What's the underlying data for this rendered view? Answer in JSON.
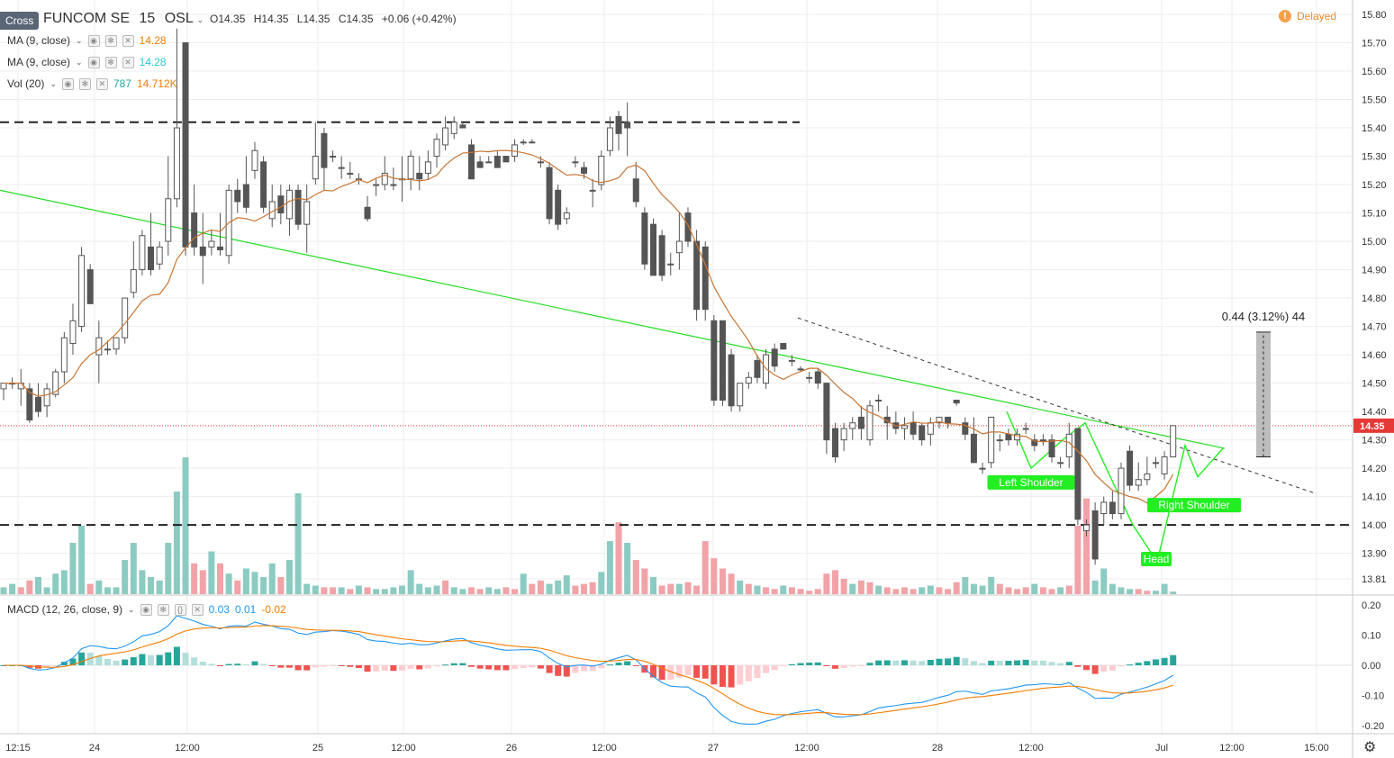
{
  "header": {
    "cross_label": "Cross",
    "symbol": "FUNCOM SE",
    "interval": "15",
    "exchange": "OSL",
    "ohlc": {
      "o": "14.35",
      "h": "14.35",
      "l": "14.35",
      "c": "14.35"
    },
    "change": "+0.06 (+0.42%)",
    "o_label": "O",
    "h_label": "H",
    "l_label": "L",
    "c_label": "C",
    "delayed": "Delayed"
  },
  "legends": {
    "ma1": {
      "label": "MA (9, close)",
      "value": "14.28",
      "color": "#f57c00"
    },
    "ma2": {
      "label": "MA (9, close)",
      "value": "14.28",
      "color": "#26c6da"
    },
    "vol": {
      "label": "Vol (20)",
      "value1": "787",
      "value2": "14.712K",
      "color1": "#26a69a",
      "color2": "#f57c00"
    },
    "macd": {
      "label": "MACD (12, 26, close, 9)",
      "v1": "0.03",
      "v2": "0.01",
      "v3": "-0.02",
      "c1": "#2196f3",
      "c2": "#2196f3",
      "c3": "#f57c00"
    }
  },
  "colors": {
    "up_candle": "#ffffff",
    "down_candle": "#555555",
    "vol_up": "#8ccbc2",
    "vol_down": "#f1a3a8",
    "trend": "#22dd22",
    "pattern": "#22ee22",
    "ma": "#c87533",
    "last_price": "#e53935",
    "macd_line": "#2196f3",
    "signal_line": "#f57c00",
    "hist_up_strong": "#26a69a",
    "hist_up_weak": "#b2dfdb",
    "hist_down_strong": "#ef5350",
    "hist_down_weak": "#ffcdd2"
  },
  "chart_data": {
    "type": "candlestick",
    "price_axis": {
      "min": 13.81,
      "max": 15.8,
      "ticks": [
        "15.80",
        "15.70",
        "15.60",
        "15.50",
        "15.40",
        "15.30",
        "15.20",
        "15.10",
        "15.00",
        "14.90",
        "14.80",
        "14.70",
        "14.60",
        "14.50",
        "14.40",
        "14.30",
        "14.20",
        "14.10",
        "14.00",
        "13.90",
        "13.81"
      ]
    },
    "last_price": "14.35",
    "time_labels": [
      "12:15",
      "24",
      "12:00",
      "25",
      "12:00",
      "26",
      "12:00",
      "27",
      "12:00",
      "28",
      "12:00",
      "Jul",
      "12:00",
      "15:00"
    ],
    "horizontal_levels": [
      15.42,
      14.0
    ],
    "measure_label": "0.44 (3.12%) 44",
    "pattern_labels": [
      "Left Shoulder",
      "Head",
      "Right Shoulder"
    ],
    "candles": [
      [
        14.48,
        14.5,
        14.44,
        14.5
      ],
      [
        14.5,
        14.52,
        14.48,
        14.5
      ],
      [
        14.48,
        14.55,
        14.42,
        14.5
      ],
      [
        14.48,
        14.5,
        14.36,
        14.37
      ],
      [
        14.45,
        14.5,
        14.38,
        14.4
      ],
      [
        14.42,
        14.5,
        14.38,
        14.48
      ],
      [
        14.46,
        14.55,
        14.45,
        14.54
      ],
      [
        14.54,
        14.68,
        14.5,
        14.66
      ],
      [
        14.64,
        14.78,
        14.6,
        14.72
      ],
      [
        14.7,
        14.98,
        14.68,
        14.95
      ],
      [
        14.9,
        14.92,
        14.78,
        14.78
      ],
      [
        14.6,
        14.72,
        14.5,
        14.66
      ],
      [
        14.62,
        14.65,
        14.6,
        14.62
      ],
      [
        14.62,
        14.66,
        14.6,
        14.66
      ],
      [
        14.66,
        14.8,
        14.64,
        14.8
      ],
      [
        14.82,
        15.0,
        14.8,
        14.9
      ],
      [
        14.9,
        15.04,
        14.88,
        15.02
      ],
      [
        14.98,
        15.1,
        14.88,
        14.9
      ],
      [
        14.92,
        15.0,
        14.9,
        14.98
      ],
      [
        15.0,
        15.3,
        14.95,
        15.15
      ],
      [
        15.15,
        15.75,
        15.12,
        15.4
      ],
      [
        15.7,
        15.7,
        14.95,
        14.98
      ],
      [
        15.1,
        15.2,
        14.95,
        14.98
      ],
      [
        14.98,
        15.1,
        14.85,
        14.95
      ],
      [
        14.98,
        15.04,
        14.95,
        15.0
      ],
      [
        14.98,
        15.1,
        14.95,
        14.97
      ],
      [
        14.95,
        15.2,
        14.92,
        15.18
      ],
      [
        15.18,
        15.22,
        15.1,
        15.14
      ],
      [
        15.2,
        15.3,
        15.1,
        15.12
      ],
      [
        15.25,
        15.35,
        15.22,
        15.32
      ],
      [
        15.28,
        15.3,
        15.1,
        15.12
      ],
      [
        15.08,
        15.2,
        15.05,
        15.14
      ],
      [
        15.16,
        15.2,
        15.06,
        15.1
      ],
      [
        15.08,
        15.2,
        15.02,
        15.18
      ],
      [
        15.18,
        15.2,
        15.04,
        15.06
      ],
      [
        15.06,
        15.2,
        14.96,
        15.14
      ],
      [
        15.22,
        15.42,
        15.2,
        15.3
      ],
      [
        15.38,
        15.4,
        15.18,
        15.26
      ],
      [
        15.3,
        15.32,
        15.28,
        15.3
      ],
      [
        15.26,
        15.3,
        15.22,
        15.26
      ],
      [
        15.24,
        15.28,
        15.22,
        15.24
      ],
      [
        15.22,
        15.24,
        15.2,
        15.22
      ],
      [
        15.12,
        15.16,
        15.07,
        15.08
      ],
      [
        15.2,
        15.22,
        15.16,
        15.2
      ],
      [
        15.2,
        15.3,
        15.18,
        15.24
      ],
      [
        15.2,
        15.26,
        15.18,
        15.2
      ],
      [
        15.22,
        15.3,
        15.14,
        15.22
      ],
      [
        15.22,
        15.32,
        15.18,
        15.3
      ],
      [
        15.24,
        15.3,
        15.18,
        15.22
      ],
      [
        15.24,
        15.32,
        15.22,
        15.28
      ],
      [
        15.3,
        15.38,
        15.26,
        15.36
      ],
      [
        15.34,
        15.44,
        15.32,
        15.4
      ],
      [
        15.38,
        15.44,
        15.36,
        15.42
      ],
      [
        15.41,
        15.42,
        15.4,
        15.4
      ],
      [
        15.34,
        15.36,
        15.22,
        15.22
      ],
      [
        15.28,
        15.3,
        15.26,
        15.26
      ],
      [
        15.28,
        15.3,
        15.28,
        15.28
      ],
      [
        15.3,
        15.32,
        15.26,
        15.26
      ],
      [
        15.3,
        15.3,
        15.28,
        15.28
      ],
      [
        15.3,
        15.36,
        15.28,
        15.34
      ],
      [
        15.35,
        15.36,
        15.34,
        15.35
      ],
      [
        15.35,
        15.36,
        15.35,
        15.35
      ],
      [
        15.28,
        15.3,
        15.26,
        15.28
      ],
      [
        15.26,
        15.28,
        15.06,
        15.08
      ],
      [
        15.18,
        15.2,
        15.04,
        15.06
      ],
      [
        15.08,
        15.12,
        15.06,
        15.1
      ],
      [
        15.28,
        15.3,
        15.26,
        15.28
      ],
      [
        15.26,
        15.28,
        15.22,
        15.24
      ],
      [
        15.18,
        15.22,
        15.12,
        15.18
      ],
      [
        15.2,
        15.32,
        15.18,
        15.3
      ],
      [
        15.32,
        15.44,
        15.3,
        15.4
      ],
      [
        15.44,
        15.46,
        15.32,
        15.38
      ],
      [
        15.42,
        15.49,
        15.3,
        15.4
      ],
      [
        15.22,
        15.28,
        15.12,
        15.14
      ],
      [
        15.1,
        15.12,
        14.9,
        14.92
      ],
      [
        15.06,
        15.08,
        14.88,
        14.88
      ],
      [
        15.02,
        15.04,
        14.86,
        14.88
      ],
      [
        14.92,
        14.96,
        14.88,
        14.92
      ],
      [
        14.96,
        15.1,
        14.9,
        15.0
      ],
      [
        15.1,
        15.12,
        14.98,
        15.0
      ],
      [
        15.0,
        15.04,
        14.72,
        14.76
      ],
      [
        14.98,
        15.0,
        14.72,
        14.76
      ],
      [
        14.72,
        14.74,
        14.42,
        14.44
      ],
      [
        14.72,
        14.72,
        14.42,
        14.44
      ],
      [
        14.6,
        14.62,
        14.4,
        14.42
      ],
      [
        14.42,
        14.5,
        14.4,
        14.5
      ],
      [
        14.5,
        14.54,
        14.48,
        14.52
      ],
      [
        14.58,
        14.6,
        14.5,
        14.52
      ],
      [
        14.5,
        14.62,
        14.48,
        14.6
      ],
      [
        14.62,
        14.64,
        14.54,
        14.56
      ],
      [
        14.64,
        14.64,
        14.62,
        14.62
      ],
      [
        14.58,
        14.6,
        14.56,
        14.58
      ],
      [
        14.55,
        14.56,
        14.54,
        14.55
      ],
      [
        14.52,
        14.54,
        14.5,
        14.52
      ],
      [
        14.54,
        14.55,
        14.48,
        14.5
      ],
      [
        14.5,
        14.5,
        14.25,
        14.3
      ],
      [
        14.34,
        14.36,
        14.22,
        14.24
      ],
      [
        14.3,
        14.36,
        14.26,
        14.34
      ],
      [
        14.34,
        14.38,
        14.3,
        14.36
      ],
      [
        14.38,
        14.42,
        14.3,
        14.34
      ],
      [
        14.3,
        14.44,
        14.28,
        14.42
      ],
      [
        14.44,
        14.46,
        14.4,
        14.44
      ],
      [
        14.38,
        14.42,
        14.3,
        14.36
      ],
      [
        14.36,
        14.4,
        14.32,
        14.34
      ],
      [
        14.34,
        14.38,
        14.3,
        14.35
      ],
      [
        14.36,
        14.4,
        14.3,
        14.32
      ],
      [
        14.35,
        14.36,
        14.28,
        14.3
      ],
      [
        14.32,
        14.38,
        14.28,
        14.36
      ],
      [
        14.36,
        14.38,
        14.34,
        14.38
      ],
      [
        14.38,
        14.38,
        14.34,
        14.36
      ],
      [
        14.44,
        14.44,
        14.42,
        14.43
      ],
      [
        14.36,
        14.38,
        14.3,
        14.32
      ],
      [
        14.32,
        14.38,
        14.22,
        14.22
      ],
      [
        14.2,
        14.22,
        14.18,
        14.2
      ],
      [
        14.22,
        14.38,
        14.2,
        14.38
      ],
      [
        14.3,
        14.32,
        14.26,
        14.3
      ],
      [
        14.32,
        14.34,
        14.28,
        14.3
      ],
      [
        14.3,
        14.34,
        14.28,
        14.32
      ],
      [
        14.34,
        14.36,
        14.32,
        14.34
      ],
      [
        14.3,
        14.32,
        14.26,
        14.28
      ],
      [
        14.3,
        14.32,
        14.28,
        14.3
      ],
      [
        14.3,
        14.32,
        14.22,
        14.24
      ],
      [
        14.22,
        14.24,
        14.2,
        14.22
      ],
      [
        14.24,
        14.36,
        14.2,
        14.32
      ],
      [
        14.34,
        14.34,
        14.0,
        14.02
      ],
      [
        13.98,
        14.02,
        13.96,
        14.0
      ],
      [
        14.05,
        14.08,
        13.86,
        13.88
      ],
      [
        14.04,
        14.1,
        14.0,
        14.08
      ],
      [
        14.08,
        14.12,
        14.02,
        14.04
      ],
      [
        14.04,
        14.22,
        14.02,
        14.2
      ],
      [
        14.26,
        14.28,
        14.12,
        14.14
      ],
      [
        14.14,
        14.22,
        14.12,
        14.16
      ],
      [
        14.16,
        14.24,
        14.14,
        14.18
      ],
      [
        14.22,
        14.24,
        14.2,
        14.22
      ],
      [
        14.18,
        14.26,
        14.16,
        14.24
      ],
      [
        14.24,
        14.35,
        14.24,
        14.35
      ]
    ],
    "volumes": [
      [
        8,
        1
      ],
      [
        12,
        1
      ],
      [
        8,
        0
      ],
      [
        16,
        0
      ],
      [
        20,
        1
      ],
      [
        8,
        1
      ],
      [
        24,
        1
      ],
      [
        28,
        1
      ],
      [
        60,
        1
      ],
      [
        80,
        1
      ],
      [
        12,
        0
      ],
      [
        16,
        1
      ],
      [
        8,
        1
      ],
      [
        8,
        1
      ],
      [
        40,
        1
      ],
      [
        60,
        1
      ],
      [
        28,
        1
      ],
      [
        20,
        1
      ],
      [
        16,
        1
      ],
      [
        60,
        1
      ],
      [
        120,
        1
      ],
      [
        160,
        1
      ],
      [
        36,
        0
      ],
      [
        28,
        0
      ],
      [
        50,
        1
      ],
      [
        36,
        0
      ],
      [
        24,
        1
      ],
      [
        16,
        0
      ],
      [
        30,
        1
      ],
      [
        26,
        1
      ],
      [
        20,
        1
      ],
      [
        36,
        1
      ],
      [
        20,
        0
      ],
      [
        40,
        1
      ],
      [
        118,
        1
      ],
      [
        12,
        1
      ],
      [
        10,
        1
      ],
      [
        8,
        0
      ],
      [
        8,
        0
      ],
      [
        8,
        1
      ],
      [
        6,
        0
      ],
      [
        10,
        1
      ],
      [
        8,
        0
      ],
      [
        6,
        1
      ],
      [
        6,
        1
      ],
      [
        8,
        1
      ],
      [
        10,
        1
      ],
      [
        28,
        1
      ],
      [
        12,
        1
      ],
      [
        8,
        1
      ],
      [
        10,
        1
      ],
      [
        16,
        0
      ],
      [
        8,
        1
      ],
      [
        6,
        1
      ],
      [
        8,
        0
      ],
      [
        6,
        0
      ],
      [
        8,
        1
      ],
      [
        6,
        1
      ],
      [
        8,
        0
      ],
      [
        6,
        0
      ],
      [
        24,
        1
      ],
      [
        12,
        0
      ],
      [
        16,
        0
      ],
      [
        12,
        1
      ],
      [
        16,
        1
      ],
      [
        22,
        1
      ],
      [
        10,
        0
      ],
      [
        12,
        0
      ],
      [
        14,
        0
      ],
      [
        26,
        1
      ],
      [
        62,
        1
      ],
      [
        84,
        0
      ],
      [
        60,
        1
      ],
      [
        40,
        0
      ],
      [
        30,
        0
      ],
      [
        20,
        1
      ],
      [
        10,
        0
      ],
      [
        12,
        0
      ],
      [
        12,
        1
      ],
      [
        14,
        0
      ],
      [
        10,
        0
      ],
      [
        62,
        0
      ],
      [
        42,
        0
      ],
      [
        30,
        0
      ],
      [
        24,
        0
      ],
      [
        16,
        1
      ],
      [
        12,
        0
      ],
      [
        10,
        1
      ],
      [
        8,
        0
      ],
      [
        6,
        0
      ],
      [
        10,
        1
      ],
      [
        8,
        0
      ],
      [
        6,
        0
      ],
      [
        4,
        0
      ],
      [
        6,
        0
      ],
      [
        24,
        0
      ],
      [
        28,
        0
      ],
      [
        18,
        0
      ],
      [
        12,
        1
      ],
      [
        16,
        0
      ],
      [
        14,
        0
      ],
      [
        10,
        1
      ],
      [
        8,
        0
      ],
      [
        6,
        0
      ],
      [
        8,
        0
      ],
      [
        6,
        0
      ],
      [
        8,
        1
      ],
      [
        10,
        1
      ],
      [
        8,
        0
      ],
      [
        6,
        0
      ],
      [
        14,
        0
      ],
      [
        20,
        1
      ],
      [
        12,
        1
      ],
      [
        10,
        1
      ],
      [
        20,
        1
      ],
      [
        12,
        0
      ],
      [
        8,
        0
      ],
      [
        6,
        0
      ],
      [
        8,
        0
      ],
      [
        12,
        1
      ],
      [
        8,
        0
      ],
      [
        6,
        0
      ],
      [
        8,
        1
      ],
      [
        10,
        0
      ],
      [
        80,
        0
      ],
      [
        112,
        0
      ],
      [
        16,
        1
      ],
      [
        30,
        1
      ],
      [
        12,
        1
      ],
      [
        8,
        1
      ],
      [
        6,
        1
      ],
      [
        6,
        0
      ],
      [
        4,
        0
      ],
      [
        4,
        1
      ],
      [
        12,
        1
      ],
      [
        3,
        1
      ]
    ],
    "macd_axis": {
      "min": -0.2,
      "max": 0.2,
      "ticks": [
        "0.20",
        "0.10",
        "0.00",
        "-0.10",
        "-0.20"
      ]
    }
  }
}
